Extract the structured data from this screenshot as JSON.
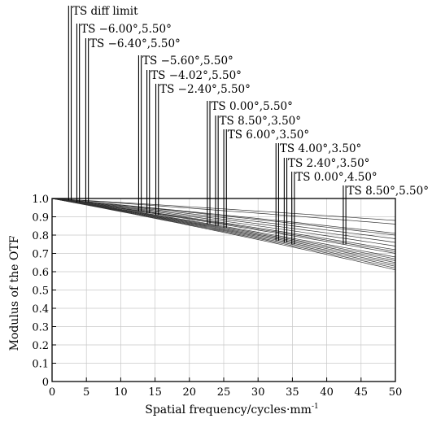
{
  "chart_data": {
    "type": "line",
    "xlabel": "Spatial frequency/cycles·mm",
    "xlabel_superscript": "-1",
    "ylabel": "Modulus of the OTF",
    "xlim": [
      0,
      50
    ],
    "ylim": [
      0,
      1.0
    ],
    "x_ticks": [
      0,
      5,
      10,
      15,
      20,
      25,
      30,
      35,
      40,
      45,
      50
    ],
    "y_ticks": [
      0,
      0.1,
      0.2,
      0.3,
      0.4,
      0.5,
      0.6,
      0.7,
      0.8,
      0.9,
      1.0
    ],
    "x_tick_labels": [
      "0",
      "5",
      "10",
      "15",
      "20",
      "25",
      "30",
      "35",
      "40",
      "45",
      "50"
    ],
    "y_tick_labels": [
      "0",
      "0.1",
      "0.2",
      "0.3",
      "0.4",
      "0.5",
      "0.6",
      "0.7",
      "0.8",
      "0.9",
      "1.0"
    ],
    "grid": true,
    "legend": "annotations",
    "annotations": [
      {
        "text": "TS diff limit",
        "x": 2.6,
        "y_end": 0.99
      },
      {
        "text": "TS −6.00°,5.50°",
        "x": 3.8,
        "y_end": 0.98
      },
      {
        "text": "TS −6.40°,5.50°",
        "x": 5.1,
        "y_end": 0.98
      },
      {
        "text": "TS −5.60°,5.50°",
        "x": 12.8,
        "y_end": 0.93
      },
      {
        "text": "TS −4.02°,5.50°",
        "x": 14.0,
        "y_end": 0.92
      },
      {
        "text": "TS −2.40°,5.50°",
        "x": 15.3,
        "y_end": 0.91
      },
      {
        "text": "TS 0.00°,5.50°",
        "x": 22.8,
        "y_end": 0.86
      },
      {
        "text": "TS 8.50°,3.50°",
        "x": 24.0,
        "y_end": 0.85
      },
      {
        "text": "TS 6.00°,3.50°",
        "x": 25.2,
        "y_end": 0.84
      },
      {
        "text": "TS 4.00°,3.50°",
        "x": 32.8,
        "y_end": 0.77
      },
      {
        "text": "TS 2.40°,3.50°",
        "x": 34.0,
        "y_end": 0.76
      },
      {
        "text": "TS 0.00°,4.50°",
        "x": 35.1,
        "y_end": 0.75
      },
      {
        "text": "TS 8.50°,5.50°",
        "x": 42.6,
        "y_end": 0.75
      }
    ],
    "series": [
      {
        "x": [
          0,
          50
        ],
        "y": [
          1.0,
          0.88
        ]
      },
      {
        "x": [
          0,
          50
        ],
        "y": [
          1.0,
          0.86
        ]
      },
      {
        "x": [
          0,
          50
        ],
        "y": [
          1.0,
          0.81
        ]
      },
      {
        "x": [
          0,
          50
        ],
        "y": [
          1.0,
          0.8
        ]
      },
      {
        "x": [
          0,
          50
        ],
        "y": [
          1.0,
          0.78
        ]
      },
      {
        "x": [
          0,
          50
        ],
        "y": [
          1.0,
          0.76
        ]
      },
      {
        "x": [
          0,
          50
        ],
        "y": [
          1.0,
          0.74
        ]
      },
      {
        "x": [
          0,
          50
        ],
        "y": [
          1.0,
          0.72
        ]
      },
      {
        "x": [
          0,
          50
        ],
        "y": [
          1.0,
          0.71
        ]
      },
      {
        "x": [
          0,
          50
        ],
        "y": [
          1.0,
          0.7
        ]
      },
      {
        "x": [
          0,
          50
        ],
        "y": [
          1.0,
          0.68
        ]
      },
      {
        "x": [
          0,
          50
        ],
        "y": [
          1.0,
          0.67
        ]
      },
      {
        "x": [
          0,
          50
        ],
        "y": [
          1.0,
          0.66
        ]
      },
      {
        "x": [
          0,
          50
        ],
        "y": [
          1.0,
          0.65
        ]
      },
      {
        "x": [
          0,
          50
        ],
        "y": [
          1.0,
          0.64
        ]
      },
      {
        "x": [
          0,
          50
        ],
        "y": [
          1.0,
          0.63
        ]
      },
      {
        "x": [
          0,
          50
        ],
        "y": [
          1.0,
          0.62
        ]
      },
      {
        "x": [
          0,
          50
        ],
        "y": [
          1.0,
          0.61
        ]
      }
    ]
  }
}
